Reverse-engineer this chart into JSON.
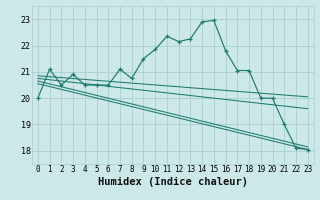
{
  "xlabel": "Humidex (Indice chaleur)",
  "bg_color": "#cce8e8",
  "grid_color": "#aacfcf",
  "line_color": "#1e7a6e",
  "xlim": [
    -0.5,
    23.5
  ],
  "ylim": [
    17.5,
    23.5
  ],
  "yticks": [
    18,
    19,
    20,
    21,
    22,
    23
  ],
  "xticks": [
    0,
    1,
    2,
    3,
    4,
    5,
    6,
    7,
    8,
    9,
    10,
    11,
    12,
    13,
    14,
    15,
    16,
    17,
    18,
    19,
    20,
    21,
    22,
    23
  ],
  "xtick_labels": [
    "0",
    "1",
    "2",
    "3",
    "4",
    "5",
    "6",
    "7",
    "8",
    "9",
    "10",
    "11",
    "12",
    "13",
    "14",
    "15",
    "16",
    "17",
    "18",
    "19",
    "20",
    "21",
    "22",
    "23"
  ],
  "main_line_x": [
    0,
    1,
    2,
    3,
    4,
    5,
    6,
    7,
    8,
    9,
    10,
    11,
    12,
    13,
    14,
    15,
    16,
    17,
    18,
    19,
    20,
    21,
    22,
    23
  ],
  "main_line_y": [
    20.0,
    21.1,
    20.5,
    20.9,
    20.5,
    20.5,
    20.5,
    21.1,
    20.75,
    21.5,
    21.85,
    22.35,
    22.15,
    22.25,
    22.9,
    22.95,
    21.8,
    21.05,
    21.05,
    20.0,
    20.0,
    19.0,
    18.1,
    18.05
  ],
  "reg_lines": [
    {
      "x": [
        0,
        23
      ],
      "y": [
        20.85,
        20.05
      ]
    },
    {
      "x": [
        0,
        23
      ],
      "y": [
        20.75,
        19.6
      ]
    },
    {
      "x": [
        0,
        23
      ],
      "y": [
        20.65,
        18.15
      ]
    },
    {
      "x": [
        0,
        23
      ],
      "y": [
        20.55,
        18.05
      ]
    }
  ],
  "xlabel_fontsize": 7.5,
  "tick_fontsize": 5.5
}
